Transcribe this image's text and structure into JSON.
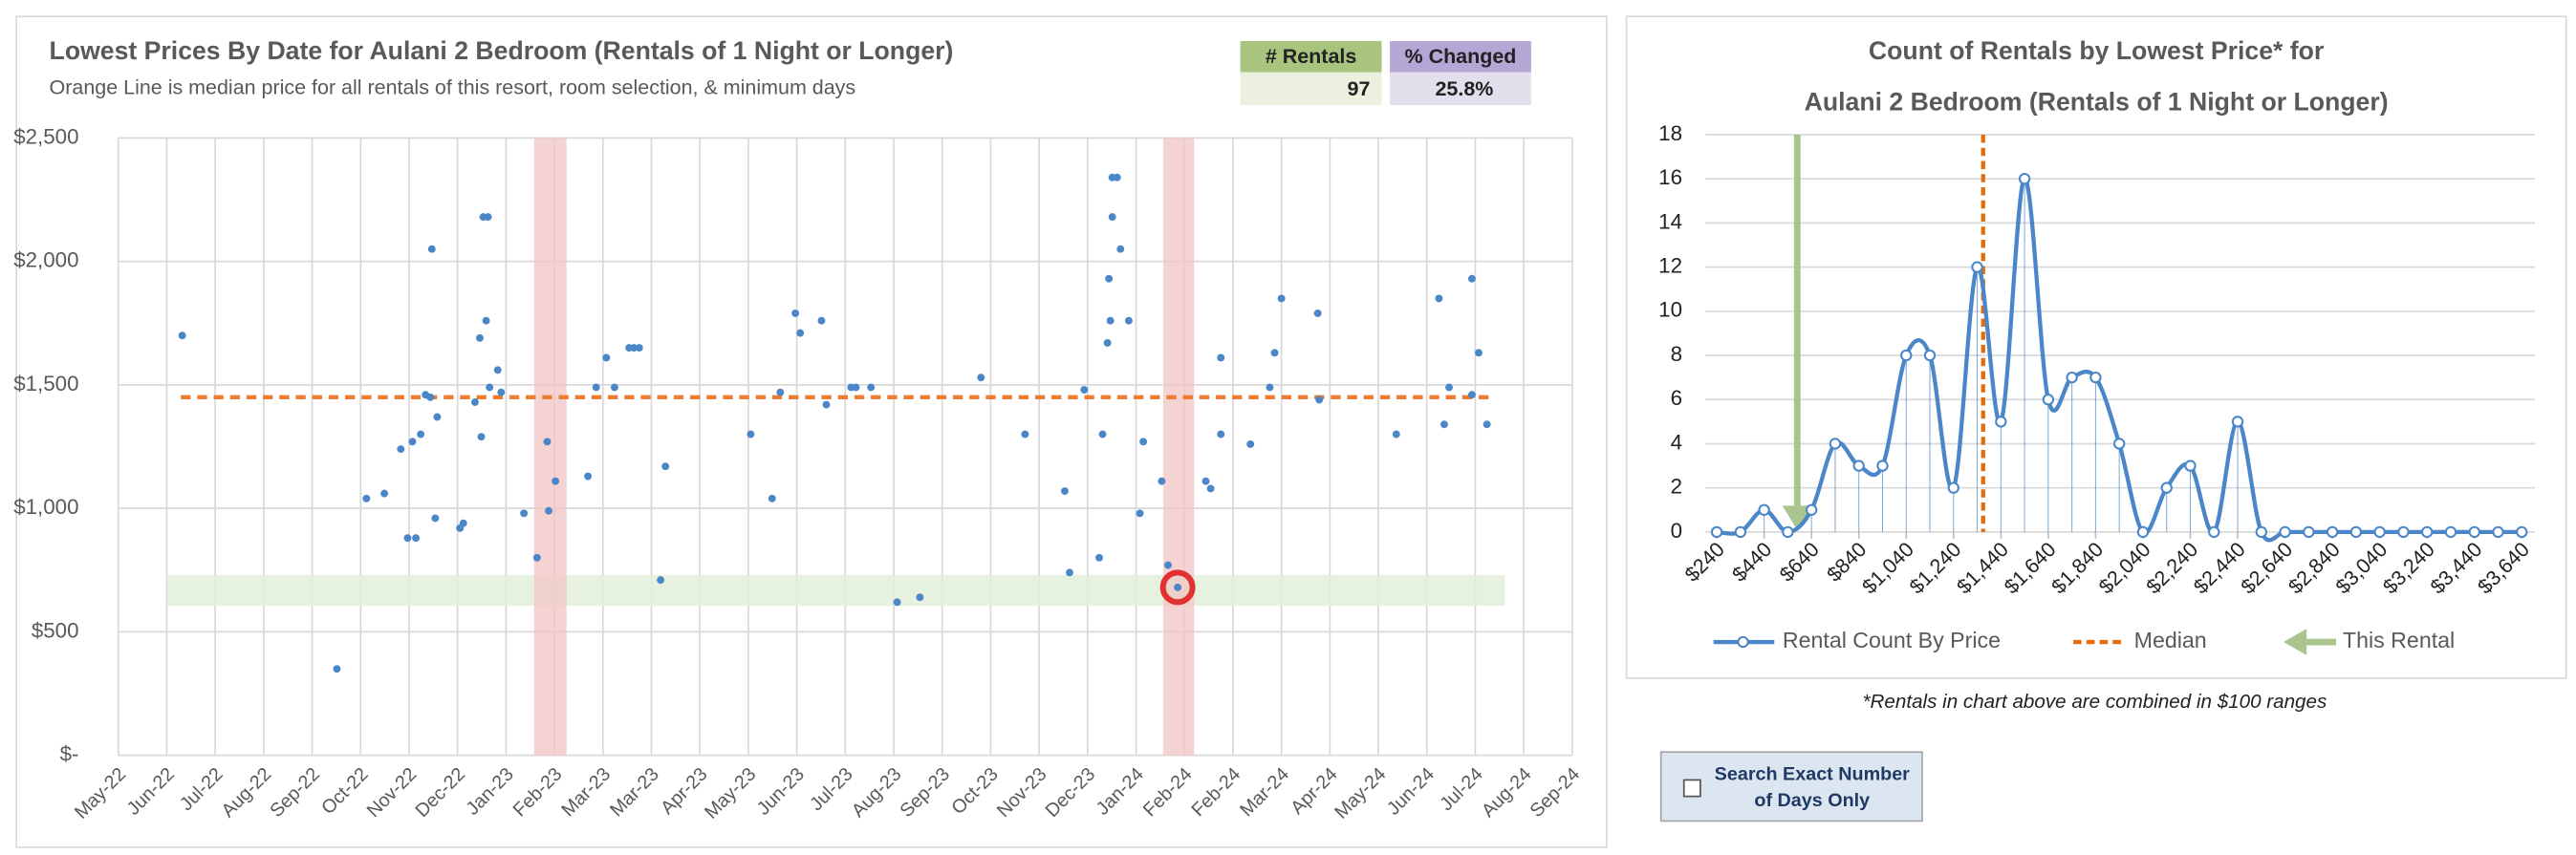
{
  "chart_data": [
    {
      "type": "scatter",
      "title": "Lowest Prices By Date for Aulani 2 Bedroom (Rentals of 1 Night or Longer)",
      "subtitle": "Orange Line is median price for all rentals of this resort, room selection, & minimum days",
      "xlim": [
        0,
        30
      ],
      "ylim": [
        0,
        2500
      ],
      "xticks": [
        {
          "value": 0,
          "label": "May-22"
        },
        {
          "value": 1,
          "label": "Jun-22"
        },
        {
          "value": 2,
          "label": "Jul-22"
        },
        {
          "value": 3,
          "label": "Aug-22"
        },
        {
          "value": 4,
          "label": "Sep-22"
        },
        {
          "value": 5,
          "label": "Oct-22"
        },
        {
          "value": 6,
          "label": "Nov-22"
        },
        {
          "value": 7,
          "label": "Dec-22"
        },
        {
          "value": 8,
          "label": "Jan-23"
        },
        {
          "value": 9,
          "label": "Feb-23"
        },
        {
          "value": 10,
          "label": "Mar-23"
        },
        {
          "value": 11,
          "label": "Mar-23"
        },
        {
          "value": 12,
          "label": "Apr-23"
        },
        {
          "value": 13,
          "label": "May-23"
        },
        {
          "value": 14,
          "label": "Jun-23"
        },
        {
          "value": 15,
          "label": "Jul-23"
        },
        {
          "value": 16,
          "label": "Aug-23"
        },
        {
          "value": 17,
          "label": "Sep-23"
        },
        {
          "value": 18,
          "label": "Oct-23"
        },
        {
          "value": 19,
          "label": "Nov-23"
        },
        {
          "value": 20,
          "label": "Dec-23"
        },
        {
          "value": 21,
          "label": "Jan-24"
        },
        {
          "value": 22,
          "label": "Feb-24"
        },
        {
          "value": 23,
          "label": "Feb-24"
        },
        {
          "value": 24,
          "label": "Mar-24"
        },
        {
          "value": 25,
          "label": "Apr-24"
        },
        {
          "value": 26,
          "label": "May-24"
        },
        {
          "value": 27,
          "label": "Jun-24"
        },
        {
          "value": 28,
          "label": "Jul-24"
        },
        {
          "value": 29,
          "label": "Aug-24"
        },
        {
          "value": 30,
          "label": "Sep-24"
        }
      ],
      "yticks": [
        {
          "value": 0,
          "label": "$-"
        },
        {
          "value": 500,
          "label": "$500"
        },
        {
          "value": 1000,
          "label": "$1,000"
        },
        {
          "value": 1500,
          "label": "$1,500"
        },
        {
          "value": 2000,
          "label": "$2,000"
        },
        {
          "value": 2500,
          "label": "$2,500"
        }
      ],
      "grid": true,
      "series": [
        {
          "color": "#4a86c8",
          "x": [
            1.32,
            4.51,
            5.12,
            5.49,
            5.83,
            5.97,
            6.14,
            6.07,
            6.24,
            6.34,
            6.44,
            6.47,
            6.54,
            6.58,
            7.05,
            7.12,
            7.36,
            7.46,
            7.49,
            7.53,
            7.63,
            7.59,
            7.66,
            7.83,
            7.9,
            8.37,
            8.64,
            8.85,
            8.88,
            9.02,
            9.69,
            9.86,
            10.07,
            10.24,
            10.54,
            10.64,
            10.75,
            11.19,
            11.29,
            13.05,
            13.49,
            13.66,
            13.97,
            14.07,
            14.51,
            14.61,
            15.12,
            15.22,
            15.53,
            16.07,
            16.54,
            17.8,
            18.71,
            19.53,
            19.63,
            19.93,
            20.24,
            20.31,
            20.47,
            20.44,
            20.41,
            20.51,
            20.51,
            20.61,
            20.68,
            20.85,
            21.08,
            21.15,
            21.53,
            21.66,
            21.86,
            22.44,
            22.54,
            22.75,
            22.75,
            23.36,
            23.76,
            23.86,
            24.0,
            24.75,
            24.78,
            26.37,
            27.25,
            27.36,
            27.46,
            27.93,
            27.93,
            28.07,
            28.24
          ],
          "values": [
            1700,
            350,
            1040,
            1060,
            1240,
            880,
            880,
            1270,
            1300,
            1460,
            1450,
            2050,
            960,
            1370,
            920,
            940,
            1430,
            1690,
            1290,
            2180,
            2180,
            1760,
            1490,
            1560,
            1470,
            980,
            800,
            1270,
            990,
            1110,
            1130,
            1490,
            1610,
            1490,
            1650,
            1650,
            1650,
            710,
            1170,
            1300,
            1040,
            1470,
            1790,
            1710,
            1760,
            1420,
            1490,
            1490,
            1490,
            620,
            640,
            1530,
            1300,
            1070,
            740,
            1480,
            800,
            1300,
            1760,
            1930,
            1670,
            2180,
            2340,
            2340,
            2050,
            1760,
            980,
            1270,
            1110,
            770,
            680,
            1110,
            1080,
            1300,
            1610,
            1260,
            1490,
            1630,
            1850,
            1790,
            1440,
            1300,
            1850,
            1340,
            1490,
            1930,
            1460,
            1630,
            1340
          ]
        }
      ],
      "median": {
        "value": 1450,
        "x": [
          1.29,
          28.34
        ],
        "color": "#ed7d31"
      },
      "y_band": {
        "y": [
          605,
          730
        ],
        "x": [
          1.02,
          28.61
        ],
        "color": "#e2efd9"
      },
      "x_bands": [
        [
          8.58,
          9.25
        ],
        [
          21.56,
          22.2
        ]
      ],
      "x_band_color": "#f2c4c4",
      "this_rental": {
        "x": 21.86,
        "y": 680,
        "color": "#e03030"
      }
    },
    {
      "type": "line",
      "title": [
        "Count of Rentals by Lowest Price* for",
        "Aulani 2 Bedroom (Rentals of 1 Night or Longer)"
      ],
      "xlim": [
        240,
        3640
      ],
      "ylim": [
        0,
        18
      ],
      "xticks": [
        {
          "value": 240,
          "label": "$240"
        },
        {
          "value": 440,
          "label": "$440"
        },
        {
          "value": 640,
          "label": "$640"
        },
        {
          "value": 840,
          "label": "$840"
        },
        {
          "value": 1040,
          "label": "$1,040"
        },
        {
          "value": 1240,
          "label": "$1,240"
        },
        {
          "value": 1440,
          "label": "$1,440"
        },
        {
          "value": 1640,
          "label": "$1,640"
        },
        {
          "value": 1840,
          "label": "$1,840"
        },
        {
          "value": 2040,
          "label": "$2,040"
        },
        {
          "value": 2240,
          "label": "$2,240"
        },
        {
          "value": 2440,
          "label": "$2,440"
        },
        {
          "value": 2640,
          "label": "$2,640"
        },
        {
          "value": 2840,
          "label": "$2,840"
        },
        {
          "value": 3040,
          "label": "$3,040"
        },
        {
          "value": 3240,
          "label": "$3,240"
        },
        {
          "value": 3440,
          "label": "$3,440"
        },
        {
          "value": 3640,
          "label": "$3,640"
        }
      ],
      "yticks": [
        0,
        2,
        4,
        6,
        8,
        10,
        12,
        14,
        16,
        18
      ],
      "grid": true,
      "series": [
        {
          "name": "Rental Count By Price",
          "color": "#4a86c8",
          "x": [
            240,
            340,
            440,
            540,
            640,
            740,
            840,
            940,
            1040,
            1140,
            1240,
            1340,
            1440,
            1540,
            1640,
            1740,
            1840,
            1940,
            2040,
            2140,
            2240,
            2340,
            2440,
            2540,
            2640,
            2740,
            2840,
            2940,
            3040,
            3140,
            3240,
            3340,
            3440,
            3540,
            3640
          ],
          "values": [
            0,
            0,
            1,
            0,
            1,
            4,
            3,
            3,
            8,
            8,
            2,
            12,
            5,
            16,
            6,
            7,
            7,
            4,
            0,
            2,
            3,
            0,
            5,
            0,
            0,
            0,
            0,
            0,
            0,
            0,
            0,
            0,
            0,
            0,
            0
          ]
        }
      ],
      "median": {
        "name": "Median",
        "x": 1365,
        "color": "#e46c0a"
      },
      "this_rental": {
        "name": "This Rental",
        "x": 580,
        "color": "#a9c48f"
      }
    }
  ],
  "stats": {
    "headers": [
      "# Rentals",
      "% Changed"
    ],
    "values": [
      97,
      "25.8%"
    ]
  },
  "footnote": "*Rentals in chart above are combined in $100 ranges",
  "checkbox_label": [
    "Search Exact Number",
    "of Days Only"
  ]
}
